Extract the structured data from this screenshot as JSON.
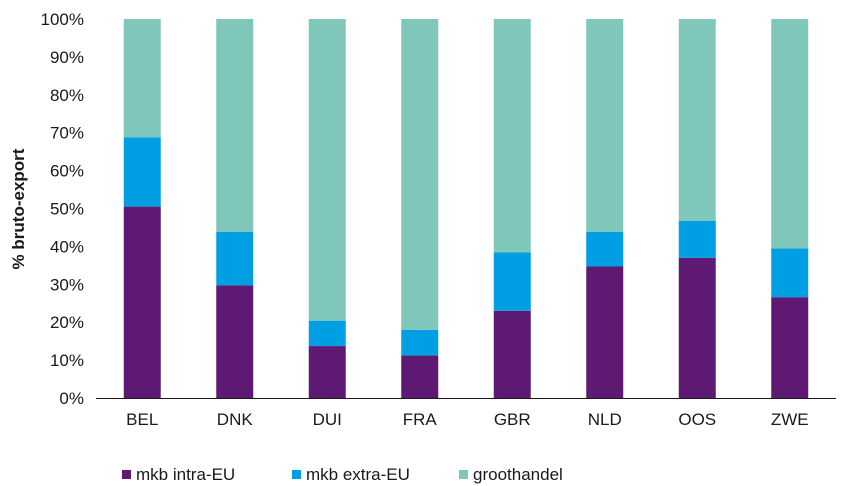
{
  "chart_data": {
    "type": "bar",
    "stacked": true,
    "title": "",
    "xlabel": "",
    "ylabel": "% bruto-export",
    "ylim": [
      0,
      100
    ],
    "yticks": [
      "0%",
      "10%",
      "20%",
      "30%",
      "40%",
      "50%",
      "60%",
      "70%",
      "80%",
      "90%",
      "100%"
    ],
    "grid": false,
    "legend_position": "bottom",
    "categories": [
      "BEL",
      "DNK",
      "DUI",
      "FRA",
      "GBR",
      "NLD",
      "OOS",
      "ZWE"
    ],
    "series": [
      {
        "name": "mkb intra-EU",
        "color": "#5e1a73",
        "values": [
          50.5,
          29.7,
          13.7,
          11.2,
          23.0,
          34.7,
          37.0,
          26.6
        ]
      },
      {
        "name": "mkb extra-EU",
        "color": "#009fe3",
        "values": [
          18.3,
          14.1,
          6.7,
          6.8,
          15.4,
          9.1,
          9.7,
          12.9
        ]
      },
      {
        "name": "groothandel",
        "color": "#80c7bb",
        "values": [
          31.2,
          56.2,
          79.6,
          82.0,
          61.6,
          56.2,
          53.3,
          60.5
        ]
      }
    ]
  }
}
